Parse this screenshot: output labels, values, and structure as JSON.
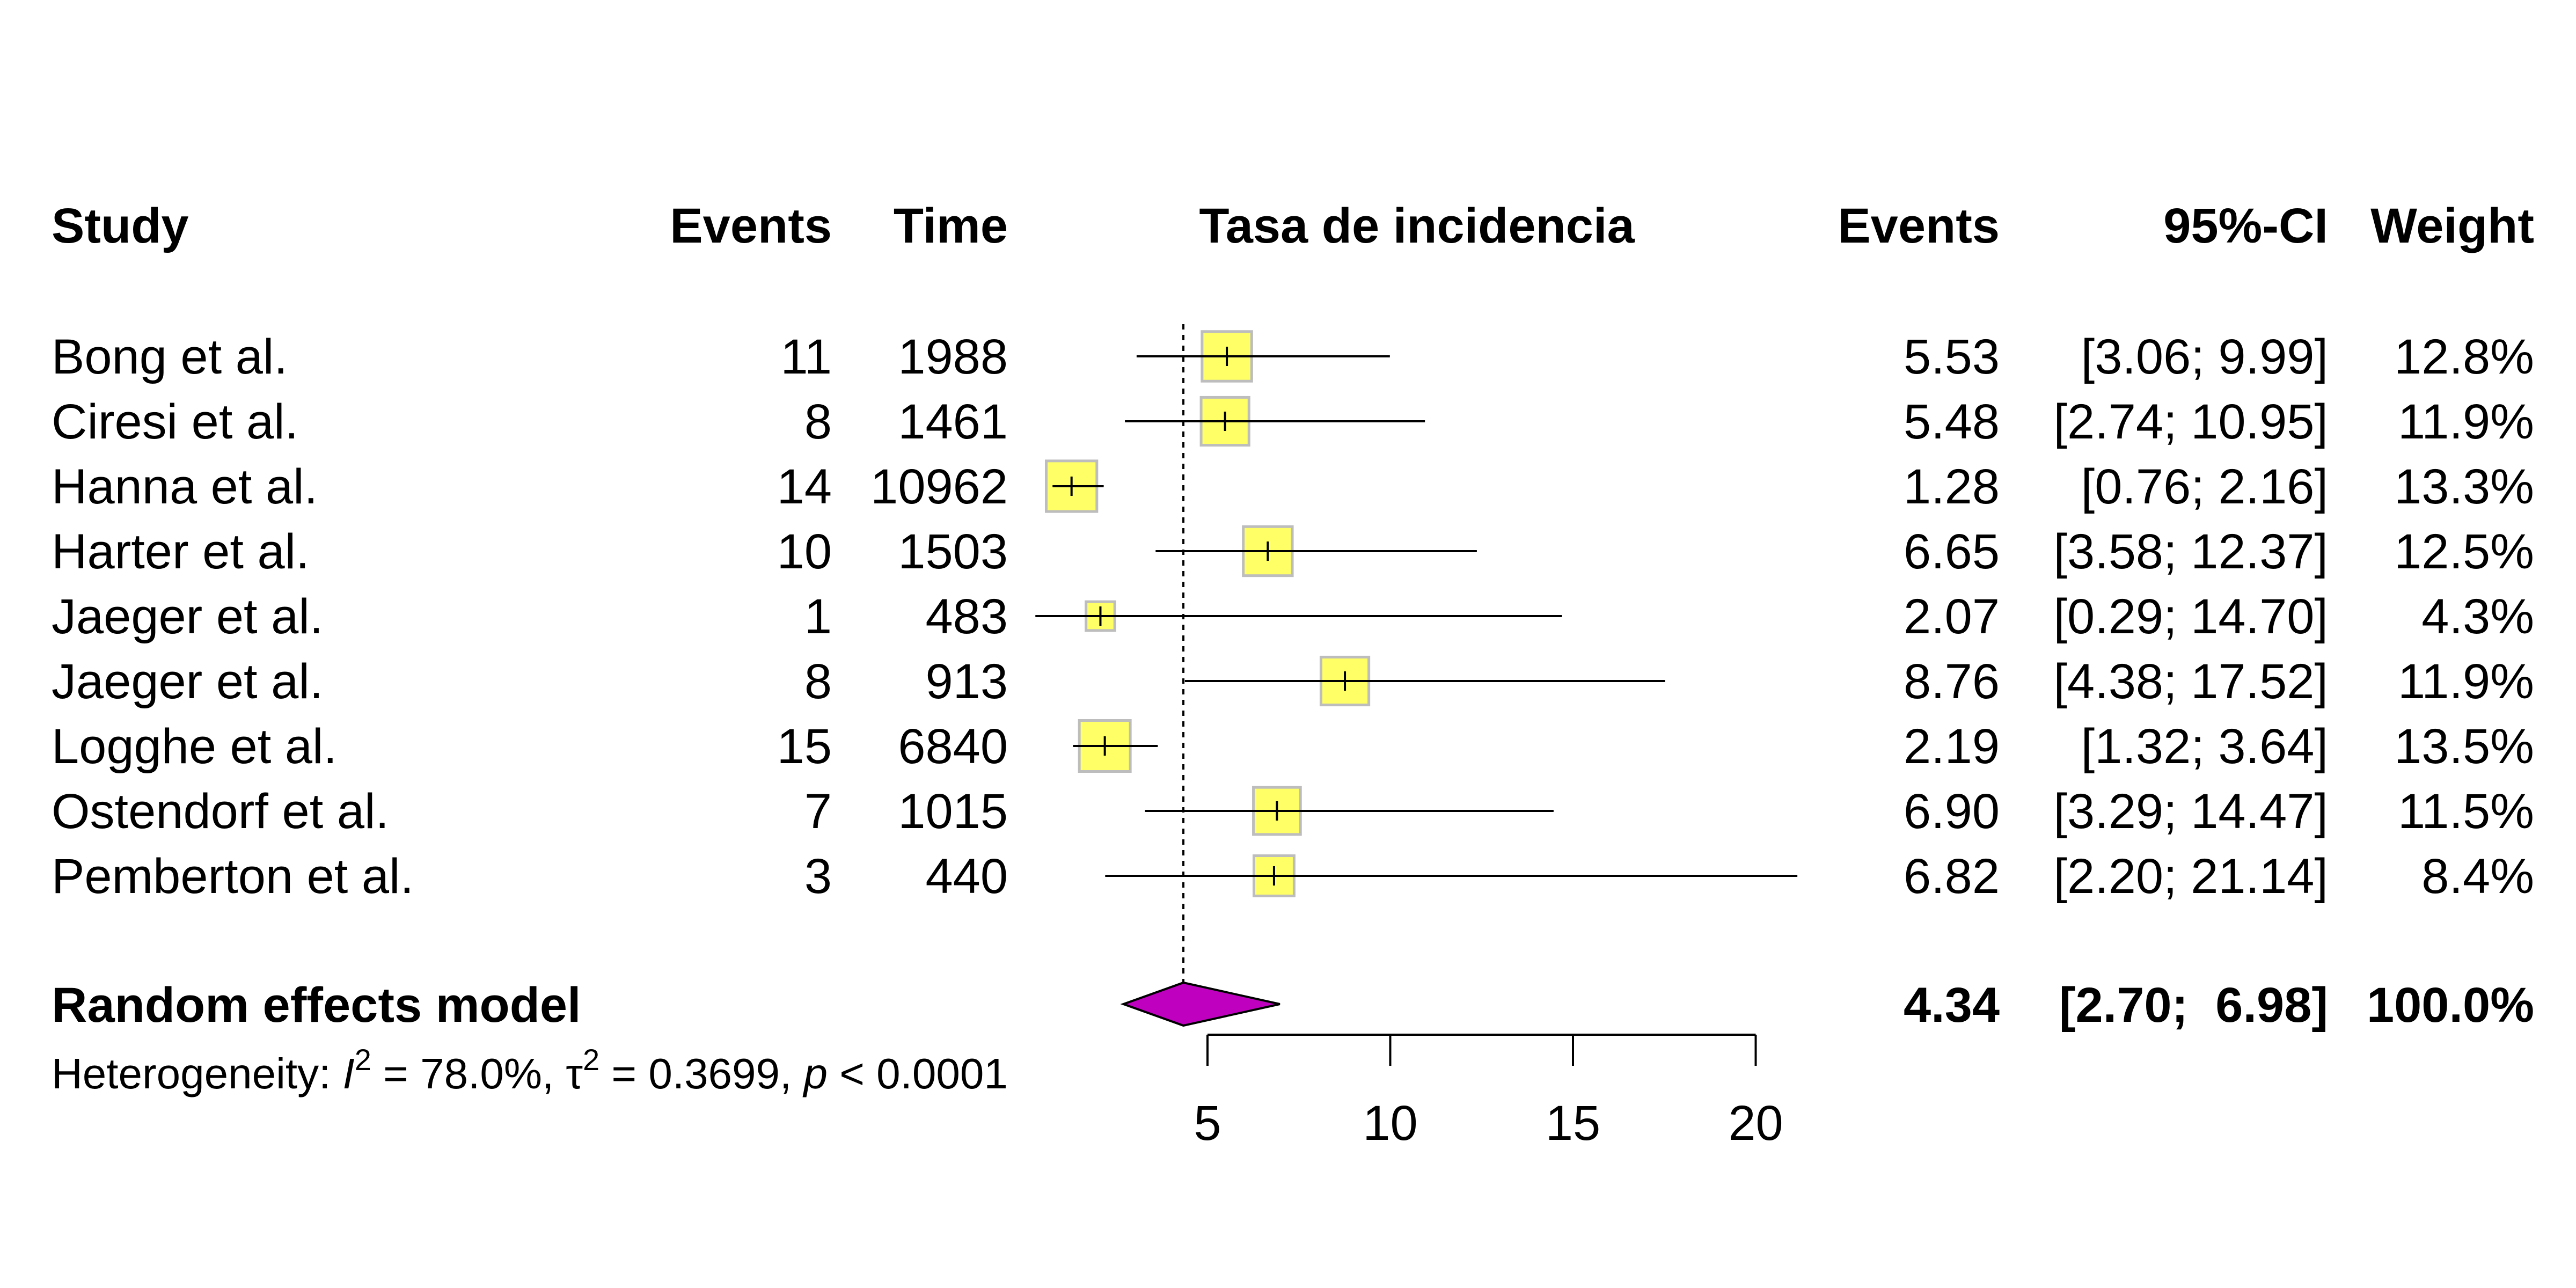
{
  "chart_data": {
    "type": "forest",
    "headers": {
      "study": "Study",
      "events": "Events",
      "time": "Time",
      "plot": "Tasa de incidencia",
      "estimate": "Events",
      "ci": "95%-CI",
      "weight": "Weight"
    },
    "studies": [
      {
        "study": "Bong et al.",
        "events": "11",
        "time": "1988",
        "estimate": 5.53,
        "lower": 3.06,
        "upper": 9.99,
        "weight": 12.8,
        "estimate_text": "5.53",
        "ci_text": "[3.06;  9.99]",
        "weight_text": "12.8%"
      },
      {
        "study": "Ciresi et al.",
        "events": "8",
        "time": "1461",
        "estimate": 5.48,
        "lower": 2.74,
        "upper": 10.95,
        "weight": 11.9,
        "estimate_text": "5.48",
        "ci_text": "[2.74; 10.95]",
        "weight_text": "11.9%"
      },
      {
        "study": "Hanna et al.",
        "events": "14",
        "time": "10962",
        "estimate": 1.28,
        "lower": 0.76,
        "upper": 2.16,
        "weight": 13.3,
        "estimate_text": "1.28",
        "ci_text": "[0.76;  2.16]",
        "weight_text": "13.3%"
      },
      {
        "study": "Harter et al.",
        "events": "10",
        "time": "1503",
        "estimate": 6.65,
        "lower": 3.58,
        "upper": 12.37,
        "weight": 12.5,
        "estimate_text": "6.65",
        "ci_text": "[3.58; 12.37]",
        "weight_text": "12.5%"
      },
      {
        "study": "Jaeger et al.",
        "events": "1",
        "time": "483",
        "estimate": 2.07,
        "lower": 0.29,
        "upper": 14.7,
        "weight": 4.3,
        "estimate_text": "2.07",
        "ci_text": "[0.29; 14.70]",
        "weight_text": "4.3%"
      },
      {
        "study": "Jaeger et al.",
        "events": "8",
        "time": "913",
        "estimate": 8.76,
        "lower": 4.38,
        "upper": 17.52,
        "weight": 11.9,
        "estimate_text": "8.76",
        "ci_text": "[4.38; 17.52]",
        "weight_text": "11.9%"
      },
      {
        "study": "Logghe et al.",
        "events": "15",
        "time": "6840",
        "estimate": 2.19,
        "lower": 1.32,
        "upper": 3.64,
        "weight": 13.5,
        "estimate_text": "2.19",
        "ci_text": "[1.32;  3.64]",
        "weight_text": "13.5%"
      },
      {
        "study": "Ostendorf et al.",
        "events": "7",
        "time": "1015",
        "estimate": 6.9,
        "lower": 3.29,
        "upper": 14.47,
        "weight": 11.5,
        "estimate_text": "6.90",
        "ci_text": "[3.29; 14.47]",
        "weight_text": "11.5%"
      },
      {
        "study": "Pemberton et al.",
        "events": "3",
        "time": "440",
        "estimate": 6.82,
        "lower": 2.2,
        "upper": 21.14,
        "weight": 8.4,
        "estimate_text": "6.82",
        "ci_text": "[2.20; 21.14]",
        "weight_text": "8.4%"
      }
    ],
    "pooled": {
      "label": "Random effects model",
      "estimate": 4.34,
      "lower": 2.7,
      "upper": 6.98,
      "weight": 100.0,
      "estimate_text": "4.34",
      "ci_text": "[2.70;  6.98]",
      "weight_text": "100.0%"
    },
    "heterogeneity": {
      "prefix": "Heterogeneity: ",
      "i2_symbol": "I",
      "i2_value": " = 78.0%, ",
      "tau2_symbol": "τ",
      "tau2_value": " = 0.3699, ",
      "p_symbol": "p",
      "p_value": " < 0.0001",
      "superscript": "2"
    },
    "x_axis": {
      "ticks": [
        5,
        10,
        15,
        20
      ],
      "tick_labels": [
        "5",
        "10",
        "15",
        "20"
      ],
      "range": [
        5,
        20
      ]
    },
    "reference_line": 4.34,
    "colors": {
      "square_fill": "#ffff66",
      "square_stroke": "#bdbdbd",
      "diamond_fill": "#bf00bf",
      "line": "#000000"
    }
  }
}
